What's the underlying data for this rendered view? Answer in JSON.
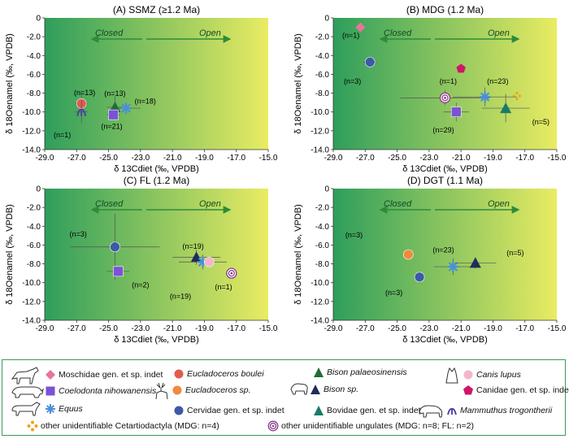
{
  "colors": {
    "moschidae": "#e8749a",
    "eucladoceros_boulei": "#e15a4e",
    "eucladoceros_sp": "#f08a3c",
    "cervidae": "#3c5aa8",
    "coelodonta": "#7b52d6",
    "equus": "#4a90d8",
    "bison_palaeosinensis": "#1f6e3a",
    "bison_sp": "#1f2d5a",
    "bovidae": "#1a7a6a",
    "canis": "#f4b6c8",
    "canidae": "#d1146a",
    "mammuthus": "#4a3aa0",
    "cetartiodactyla": "#f0a020",
    "ungulates": "#8b3a8b",
    "grad_left": "#2e9e5c",
    "grad_right": "#e9ec62",
    "arrow": "#2e8b3a"
  },
  "chart_data": [
    {
      "type": "scatter",
      "title": "(A) SSMZ (≥1.2 Ma)",
      "xlabel": "δ 13Cdiet (‰, VPDB)",
      "ylabel": "δ 18Oenamel (‰, VPDB)",
      "xlim": [
        -29.0,
        -15.0
      ],
      "ylim": [
        -14.0,
        0
      ],
      "arrow_labels": [
        "Closed",
        "Open"
      ],
      "points": [
        {
          "taxon": "eucladoceros_boulei",
          "x": -26.7,
          "y": -9.1,
          "xerr": 0.4,
          "yerr": 1.2
        },
        {
          "taxon": "mammuthus",
          "x": -26.7,
          "y": -10.0,
          "xerr": 0.4,
          "yerr": 1.2
        },
        {
          "taxon": "bison_palaeosinensis",
          "x": -24.6,
          "y": -9.5,
          "xerr": 0.5,
          "yerr": 1.2
        },
        {
          "taxon": "coelodonta",
          "x": -24.7,
          "y": -10.3,
          "xerr": 0.4,
          "yerr": 0.6
        },
        {
          "taxon": "equus",
          "x": -23.9,
          "y": -9.6,
          "xerr": 0.9,
          "yerr": 0.5
        }
      ],
      "annotations": [
        {
          "text": "(n=13)",
          "x": -26.5,
          "y": -8.2
        },
        {
          "text": "(n=13)",
          "x": -24.6,
          "y": -8.3
        },
        {
          "text": "(n=18)",
          "x": -22.7,
          "y": -9.1
        },
        {
          "text": "(n=1)",
          "x": -27.9,
          "y": -12.7
        },
        {
          "text": "(n=21)",
          "x": -24.8,
          "y": -11.8
        }
      ]
    },
    {
      "type": "scatter",
      "title": "(B) MDG (1.2 Ma)",
      "xlabel": "δ 13Cdiet (‰, VPDB)",
      "ylabel": "δ 18Oenamel (‰, VPDB)",
      "xlim": [
        -29.0,
        -15.0
      ],
      "ylim": [
        -14.0,
        0
      ],
      "arrow_labels": [
        "Closed",
        "Open"
      ],
      "points": [
        {
          "taxon": "moschidae",
          "x": -27.3,
          "y": -1.0,
          "xerr": 0,
          "yerr": 0
        },
        {
          "taxon": "cervidae",
          "x": -26.7,
          "y": -4.7,
          "xerr": 0.4,
          "yerr": 0
        },
        {
          "taxon": "canidae",
          "x": -21.0,
          "y": -5.4,
          "xerr": 0,
          "yerr": 0
        },
        {
          "taxon": "ungulates",
          "x": -22.0,
          "y": -8.5,
          "xerr": 2.8,
          "yerr": 0.8
        },
        {
          "taxon": "cetartiodactyla",
          "x": -17.5,
          "y": -8.3,
          "xerr": 0,
          "yerr": 0
        },
        {
          "taxon": "equus",
          "x": -19.5,
          "y": -8.4,
          "xerr": 2.0,
          "yerr": 1.0
        },
        {
          "taxon": "coelodonta",
          "x": -21.3,
          "y": -10.0,
          "xerr": 0.8,
          "yerr": 1.0
        },
        {
          "taxon": "bovidae",
          "x": -18.2,
          "y": -9.6,
          "xerr": 1.5,
          "yerr": 1.5
        }
      ],
      "annotations": [
        {
          "text": "(n=1)",
          "x": -27.9,
          "y": -2.1
        },
        {
          "text": "(n=3)",
          "x": -27.8,
          "y": -7.0
        },
        {
          "text": "(n=1)",
          "x": -21.8,
          "y": -7.0
        },
        {
          "text": "(n=23)",
          "x": -18.7,
          "y": -7.0
        },
        {
          "text": "(n=29)",
          "x": -22.1,
          "y": -12.2
        },
        {
          "text": "(n=5)",
          "x": -16.0,
          "y": -11.3
        }
      ]
    },
    {
      "type": "scatter",
      "title": "(C) FL (1.2 Ma)",
      "xlabel": "δ 13Cdiet (‰, VPDB)",
      "ylabel": "δ 18Oenamel (‰, VPDB)",
      "xlim": [
        -29.0,
        -15.0
      ],
      "ylim": [
        -14.0,
        0
      ],
      "arrow_labels": [
        "Closed",
        "Open"
      ],
      "points": [
        {
          "taxon": "cervidae",
          "x": -24.6,
          "y": -6.2,
          "xerr": 2.8,
          "yerr": 3.5
        },
        {
          "taxon": "coelodonta",
          "x": -24.4,
          "y": -8.8,
          "xerr": 0.7,
          "yerr": 0.6
        },
        {
          "taxon": "bison_sp",
          "x": -19.5,
          "y": -7.3,
          "xerr": 1.5,
          "yerr": 0.8
        },
        {
          "taxon": "equus",
          "x": -19.1,
          "y": -7.8,
          "xerr": 1.5,
          "yerr": 0.8
        },
        {
          "taxon": "canis",
          "x": -18.7,
          "y": -7.8,
          "xerr": 0,
          "yerr": 0
        },
        {
          "taxon": "ungulates",
          "x": -17.3,
          "y": -9.0,
          "xerr": 0.3,
          "yerr": 0
        }
      ],
      "annotations": [
        {
          "text": "(n=3)",
          "x": -26.9,
          "y": -5.1
        },
        {
          "text": "(n=2)",
          "x": -23.0,
          "y": -10.5
        },
        {
          "text": "(n=19)",
          "x": -19.7,
          "y": -6.4
        },
        {
          "text": "(n=19)",
          "x": -20.5,
          "y": -11.7
        },
        {
          "text": "(n=1)",
          "x": -17.8,
          "y": -10.7
        }
      ]
    },
    {
      "type": "scatter",
      "title": "(D) DGT (1.1 Ma)",
      "xlabel": "δ 13Cdiet (‰, VPDB)",
      "ylabel": "δ 18Oenamel (‰, VPDB)",
      "xlim": [
        -29.0,
        -15.0
      ],
      "ylim": [
        -14.0,
        0
      ],
      "arrow_labels": [
        "Closed",
        "Open"
      ],
      "points": [
        {
          "taxon": "eucladoceros_sp",
          "x": -24.3,
          "y": -7.0,
          "xerr": 0,
          "yerr": 0
        },
        {
          "taxon": "equus",
          "x": -21.5,
          "y": -8.3,
          "xerr": 1.2,
          "yerr": 0.9
        },
        {
          "taxon": "bison_sp",
          "x": -20.1,
          "y": -7.9,
          "xerr": 1.3,
          "yerr": 0.6
        },
        {
          "taxon": "cervidae",
          "x": -23.6,
          "y": -9.4,
          "xerr": 0,
          "yerr": 0.6
        }
      ],
      "annotations": [
        {
          "text": "(n=3)",
          "x": -27.7,
          "y": -5.2
        },
        {
          "text": "(n=23)",
          "x": -22.1,
          "y": -6.8
        },
        {
          "text": "(n=5)",
          "x": -17.6,
          "y": -7.1
        },
        {
          "text": "(n=3)",
          "x": -25.2,
          "y": -11.3
        }
      ]
    }
  ],
  "legend": [
    {
      "key": "moschidae",
      "marker": "diamond",
      "text": "Moschidae gen. et sp. indet",
      "italic": false
    },
    {
      "key": "eucladoceros_boulei",
      "marker": "circle",
      "text": "Eucladoceros boulei",
      "italic": true
    },
    {
      "key": "bison_palaeosinensis",
      "marker": "triangle",
      "text": "Bison palaeosinensis",
      "italic": true
    },
    {
      "key": "canis",
      "marker": "circle",
      "text": "Canis lupus",
      "italic": true
    },
    {
      "key": "coelodonta",
      "marker": "square",
      "text": "Coelodonta nihowanensis",
      "italic": true
    },
    {
      "key": "eucladoceros_sp",
      "marker": "circle",
      "text": "Eucladoceros sp.",
      "italic": true,
      "suffix_plain": ""
    },
    {
      "key": "bison_sp",
      "marker": "triangle",
      "text": "Bison sp.",
      "italic": true
    },
    {
      "key": "canidae",
      "marker": "pentagon",
      "text": "Canidae gen. et sp. indet ?",
      "italic": false
    },
    {
      "key": "equus",
      "marker": "star",
      "text": "Equus",
      "italic": true
    },
    {
      "key": "cervidae",
      "marker": "circle",
      "text": "Cervidae gen. et sp. indet",
      "italic": false
    },
    {
      "key": "bovidae",
      "marker": "triangle",
      "text": "Bovidae gen. et sp. indet",
      "italic": false
    },
    {
      "key": "mammuthus",
      "marker": "tusk",
      "text": "Mammuthus trogontherii",
      "italic": true
    },
    {
      "key": "cetartiodactyla",
      "marker": "cross",
      "text": "other unidentifiable Cetartiodactyla (MDG: n=4)",
      "italic": false
    },
    {
      "key": "ungulates",
      "marker": "target",
      "text": "other unidentifiable ungulates (MDG: n=8; FL: n=2)",
      "italic": false
    }
  ]
}
